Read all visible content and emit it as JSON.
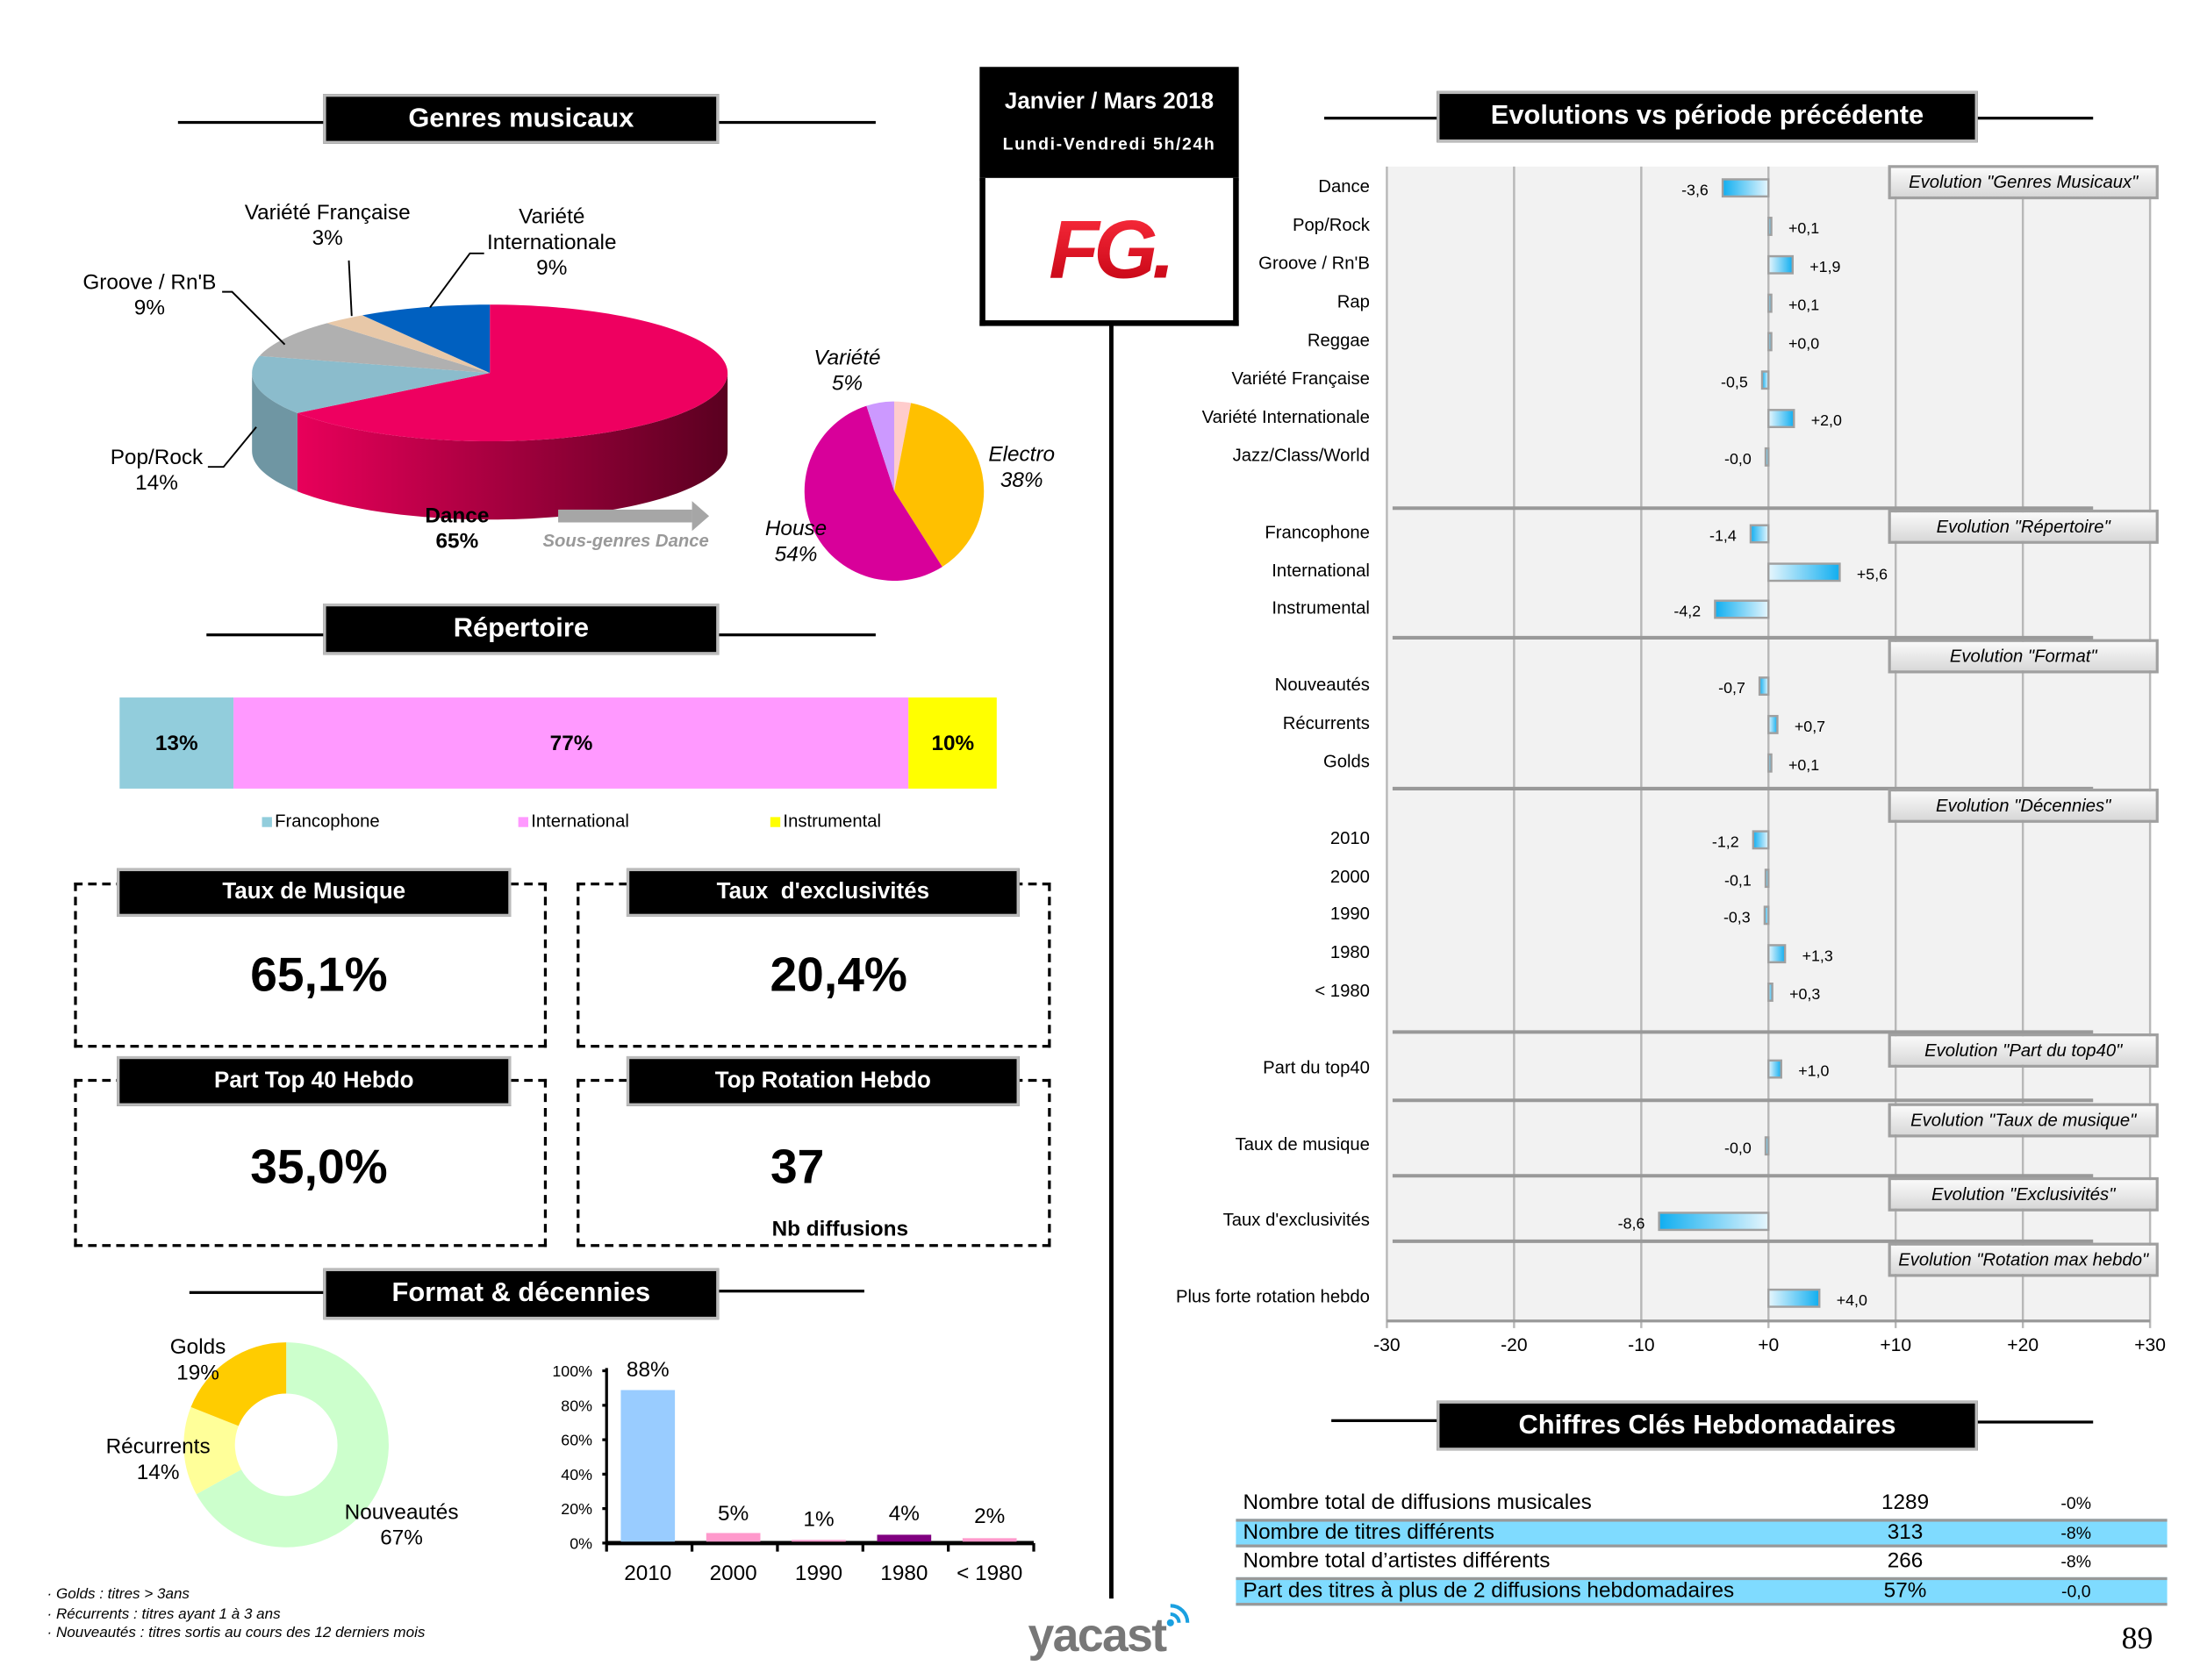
{
  "headers": {
    "genres": "Genres musicaux",
    "repertoire": "Répertoire",
    "format": "Format & décennies",
    "evolutions": "Evolutions vs période précédente",
    "chiffres": "Chiffres Clés Hebdomadaires"
  },
  "period": {
    "title": "Janvier / Mars 2018",
    "subtitle": "Lundi-Vendredi 5h/24h"
  },
  "logo": {
    "station": "FG.",
    "brand": "yacast",
    "station_color": "#e3001b"
  },
  "page_number": "89",
  "chart_data": [
    {
      "id": "genres",
      "type": "pie",
      "style": "3d",
      "slices": [
        {
          "label": "Dance",
          "value": 65,
          "display": "65%",
          "color": "#ee0060"
        },
        {
          "label": "Pop/Rock",
          "value": 14,
          "display": "14%",
          "color": "#8bbccc"
        },
        {
          "label": "Groove / Rn'B",
          "value": 9,
          "display": "9%",
          "color": "#b0b0b0"
        },
        {
          "label": "Variété Française",
          "value": 3,
          "display": "3%",
          "color": "#e8c8a8"
        },
        {
          "label": "Variété Internationale",
          "value": 9,
          "display": "9%",
          "color": "#0060c0"
        }
      ],
      "label_variete_1": "Variété",
      "label_variete_2": "Internationale",
      "arrow_caption": "Sous-genres Dance"
    },
    {
      "id": "sous-genres",
      "type": "pie",
      "slices": [
        {
          "label": "",
          "value": 3,
          "display": "",
          "color": "#ffcccc"
        },
        {
          "label": "Electro",
          "value": 38,
          "display": "38%",
          "color": "#ffc000"
        },
        {
          "label": "House",
          "value": 54,
          "display": "54%",
          "color": "#d8009a"
        },
        {
          "label": "Variété",
          "value": 5,
          "display": "5%",
          "color": "#cc99ff"
        }
      ]
    },
    {
      "id": "repertoire",
      "type": "bar",
      "orientation": "stacked-horizontal",
      "series": [
        {
          "name": "Francophone",
          "value": 13,
          "display": "13%",
          "color": "#92cddc"
        },
        {
          "name": "International",
          "value": 77,
          "display": "77%",
          "color": "#ff99ff"
        },
        {
          "name": "Instrumental",
          "value": 10,
          "display": "10%",
          "color": "#ffff00"
        }
      ],
      "legend": "bottom"
    },
    {
      "id": "format",
      "type": "pie",
      "style": "donut",
      "slices": [
        {
          "label": "Nouveautés",
          "value": 67,
          "display": "67%",
          "color": "#ccffcc"
        },
        {
          "label": "Récurrents",
          "value": 14,
          "display": "14%",
          "color": "#ffff99"
        },
        {
          "label": "Golds",
          "value": 19,
          "display": "19%",
          "color": "#ffcc00"
        }
      ]
    },
    {
      "id": "decennies",
      "type": "bar",
      "categories": [
        "2010",
        "2000",
        "1990",
        "1980",
        "< 1980"
      ],
      "values": [
        88,
        5,
        1,
        4,
        2
      ],
      "value_labels": [
        "88%",
        "5%",
        "1%",
        "4%",
        "2%"
      ],
      "colors": [
        "#99ccff",
        "#ff99cc",
        "#ff99cc",
        "#800080",
        "#ff99cc"
      ],
      "ylim": [
        0,
        100
      ],
      "yticks": [
        "0%",
        "20%",
        "40%",
        "60%",
        "80%",
        "100%"
      ]
    },
    {
      "id": "evolutions",
      "type": "bar",
      "orientation": "horizontal",
      "xlim": [
        -30,
        30
      ],
      "xticks": [
        "-30",
        "-20",
        "-10",
        "+0",
        "+10",
        "+20",
        "+30"
      ],
      "grid": true,
      "groups": [
        {
          "title": "Evolution \"Genres  Musicaux\"",
          "items": [
            {
              "label": "Dance",
              "value": -3.6,
              "display": "-3,6"
            },
            {
              "label": "Pop/Rock",
              "value": 0.1,
              "display": "+0,1"
            },
            {
              "label": "Groove / Rn'B",
              "value": 1.9,
              "display": "+1,9"
            },
            {
              "label": "Rap",
              "value": 0.1,
              "display": "+0,1"
            },
            {
              "label": "Reggae",
              "value": 0.0,
              "display": "+0,0"
            },
            {
              "label": "Variété Française",
              "value": -0.5,
              "display": "-0,5"
            },
            {
              "label": "Variété Internationale",
              "value": 2.0,
              "display": "+2,0"
            },
            {
              "label": "Jazz/Class/World",
              "value": -0.0,
              "display": "-0,0"
            }
          ]
        },
        {
          "title": "Evolution \"Répertoire\"",
          "items": [
            {
              "label": "Francophone",
              "value": -1.4,
              "display": "-1,4"
            },
            {
              "label": "International",
              "value": 5.6,
              "display": "+5,6"
            },
            {
              "label": "Instrumental",
              "value": -4.2,
              "display": "-4,2"
            }
          ]
        },
        {
          "title": "Evolution \"Format\"",
          "items": [
            {
              "label": "Nouveautés",
              "value": -0.7,
              "display": "-0,7"
            },
            {
              "label": "Récurrents",
              "value": 0.7,
              "display": "+0,7"
            },
            {
              "label": "Golds",
              "value": 0.1,
              "display": "+0,1"
            }
          ]
        },
        {
          "title": "Evolution \"Décennies\"",
          "items": [
            {
              "label": "2010",
              "value": -1.2,
              "display": "-1,2"
            },
            {
              "label": "2000",
              "value": -0.1,
              "display": "-0,1"
            },
            {
              "label": "1990",
              "value": -0.3,
              "display": "-0,3"
            },
            {
              "label": "1980",
              "value": 1.3,
              "display": "+1,3"
            },
            {
              "label": "< 1980",
              "value": 0.3,
              "display": "+0,3"
            }
          ]
        },
        {
          "title": "Evolution \"Part du top40\"",
          "items": [
            {
              "label": "Part du top40",
              "value": 1.0,
              "display": "+1,0"
            }
          ]
        },
        {
          "title": "Evolution \"Taux  de musique\"",
          "items": [
            {
              "label": "Taux de musique",
              "value": -0.0,
              "display": "-0,0"
            }
          ]
        },
        {
          "title": "Evolution \"Exclusivités\"",
          "items": [
            {
              "label": "Taux d'exclusivités",
              "value": -8.6,
              "display": "-8,6"
            }
          ]
        },
        {
          "title": "Evolution \"Rotation max hebdo\"",
          "items": [
            {
              "label": "Plus forte rotation hebdo",
              "value": 4.0,
              "display": "+4,0"
            }
          ]
        }
      ]
    }
  ],
  "kpis": [
    {
      "title": "Taux de Musique",
      "value": "65,1%"
    },
    {
      "title": "Taux  d'exclusivités",
      "value": "20,4%"
    },
    {
      "title": "Part Top 40 Hebdo",
      "value": "35,0%"
    },
    {
      "title": "Top Rotation Hebdo",
      "value": "37",
      "caption": "Nb diffusions"
    }
  ],
  "footnotes": [
    "· Golds : titres > 3ans",
    "· Récurrents : titres ayant  1 à 3 ans",
    "· Nouveautés  : titres sortis au cours des 12 derniers mois"
  ],
  "key_figures": [
    {
      "label": "Nombre total de diffusions musicales",
      "value": "1289",
      "change": "-0%"
    },
    {
      "label": "Nombre de titres différents",
      "value": "313",
      "change": "-8%"
    },
    {
      "label": "Nombre total d’artistes différents",
      "value": "266",
      "change": "-8%"
    },
    {
      "label": "Part des titres à plus de 2 diffusions hebdomadaires",
      "value": "57%",
      "change": "-0,0"
    }
  ]
}
